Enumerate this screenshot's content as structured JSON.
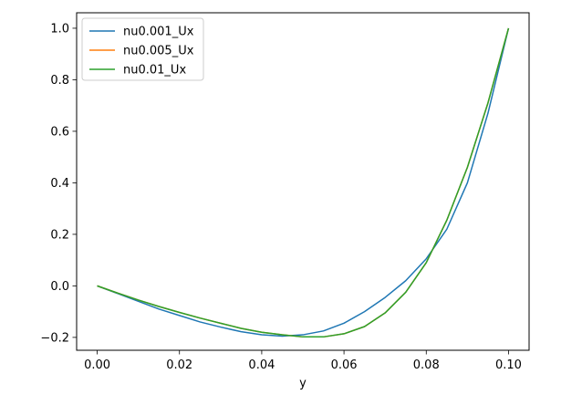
{
  "chart_data": {
    "type": "line",
    "title": "",
    "xlabel": "y",
    "ylabel": "",
    "xlim": [
      -0.005,
      0.105
    ],
    "ylim": [
      -0.25,
      1.06
    ],
    "xticks": [
      0.0,
      0.02,
      0.04,
      0.06,
      0.08,
      0.1
    ],
    "xtick_labels": [
      "0.00",
      "0.02",
      "0.04",
      "0.06",
      "0.08",
      "0.10"
    ],
    "yticks": [
      -0.2,
      0.0,
      0.2,
      0.4,
      0.6,
      0.8,
      1.0
    ],
    "ytick_labels": [
      "−0.2",
      "0.0",
      "0.2",
      "0.4",
      "0.6",
      "0.8",
      "1.0"
    ],
    "grid": false,
    "legend_position": "top-left",
    "x": [
      0.0,
      0.005,
      0.01,
      0.015,
      0.02,
      0.025,
      0.03,
      0.035,
      0.04,
      0.045,
      0.05,
      0.055,
      0.06,
      0.065,
      0.07,
      0.075,
      0.08,
      0.085,
      0.09,
      0.095,
      0.1
    ],
    "series": [
      {
        "name": "nu0.001_Ux",
        "color": "#1f77b4",
        "values": [
          0.0,
          -0.03,
          -0.06,
          -0.09,
          -0.115,
          -0.14,
          -0.16,
          -0.178,
          -0.19,
          -0.195,
          -0.19,
          -0.175,
          -0.145,
          -0.1,
          -0.045,
          0.02,
          0.105,
          0.22,
          0.4,
          0.67,
          1.0
        ]
      },
      {
        "name": "nu0.005_Ux",
        "color": "#ff7f0e",
        "values": [
          0.0,
          -0.028,
          -0.055,
          -0.08,
          -0.103,
          -0.125,
          -0.145,
          -0.165,
          -0.18,
          -0.19,
          -0.198,
          -0.198,
          -0.186,
          -0.158,
          -0.105,
          -0.025,
          0.09,
          0.255,
          0.46,
          0.71,
          1.0
        ]
      },
      {
        "name": "nu0.01_Ux",
        "color": "#2ca02c",
        "values": [
          0.0,
          -0.028,
          -0.055,
          -0.08,
          -0.103,
          -0.125,
          -0.145,
          -0.165,
          -0.18,
          -0.19,
          -0.198,
          -0.198,
          -0.186,
          -0.158,
          -0.105,
          -0.025,
          0.09,
          0.255,
          0.46,
          0.71,
          1.0
        ]
      }
    ]
  }
}
